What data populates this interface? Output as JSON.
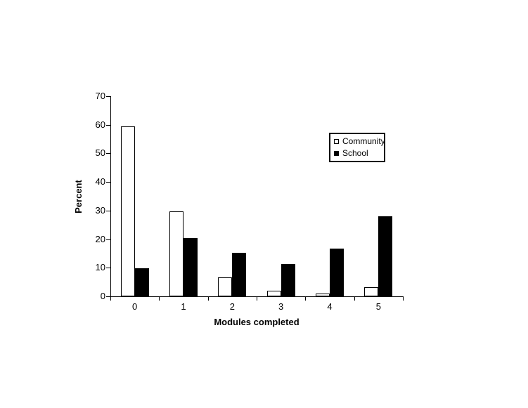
{
  "chart_data": {
    "type": "bar",
    "title": "",
    "categories": [
      "0",
      "1",
      "2",
      "3",
      "4",
      "5"
    ],
    "series": [
      {
        "name": "Community",
        "fill": "#ffffff",
        "border": "#000000",
        "values": [
          59.5,
          29.7,
          6.7,
          1.9,
          0.9,
          3.1
        ]
      },
      {
        "name": "School",
        "fill": "#000000",
        "border": "#000000",
        "values": [
          9.8,
          20.3,
          15.3,
          11.4,
          16.8,
          27.9
        ]
      }
    ],
    "xlabel": "Modules completed",
    "ylabel": "Percent",
    "ylim": [
      0,
      70
    ],
    "yticks": [
      0,
      10,
      20,
      30,
      40,
      50,
      60,
      70
    ],
    "grid": false,
    "legend": {
      "position": "inside-top-right",
      "items": [
        "Community",
        "School"
      ]
    },
    "colors": {
      "axis": "#000000",
      "text": "#000000",
      "background": "#ffffff"
    }
  }
}
